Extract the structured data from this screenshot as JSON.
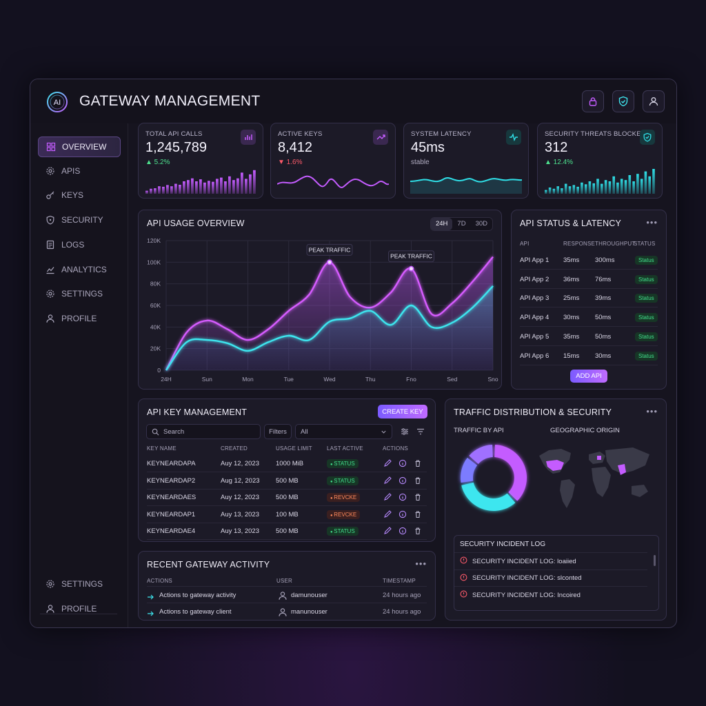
{
  "app": {
    "title": "GATEWAY MANAGEMENT",
    "logo_text": "AI"
  },
  "topbar": {
    "icons": [
      "lock-icon",
      "shield-check-icon",
      "user-icon"
    ]
  },
  "sidebar": {
    "items": [
      {
        "label": "OVERVIEW",
        "icon": "grid-icon",
        "active": true
      },
      {
        "label": "APIS",
        "icon": "gear-icon"
      },
      {
        "label": "KEYS",
        "icon": "key-icon"
      },
      {
        "label": "SECURITY",
        "icon": "shield-icon"
      },
      {
        "label": "LOGS",
        "icon": "document-icon"
      },
      {
        "label": "ANALYTICS",
        "icon": "chart-icon"
      },
      {
        "label": "SETTINGS",
        "icon": "gear-icon"
      },
      {
        "label": "PROFILE",
        "icon": "user-icon"
      }
    ],
    "bottom": [
      {
        "label": "SETTINGS",
        "icon": "gear-icon"
      },
      {
        "label": "PROFILE",
        "icon": "user-icon"
      }
    ]
  },
  "stats": [
    {
      "label": "TOTAL API CALLS",
      "value": "1,245,789",
      "delta": "▲ 5.2%",
      "delta_color": "#4ee38f",
      "accent": "#c45cff",
      "bars": [
        0.12,
        0.2,
        0.22,
        0.3,
        0.28,
        0.35,
        0.3,
        0.4,
        0.36,
        0.5,
        0.55,
        0.62,
        0.5,
        0.58,
        0.45,
        0.52,
        0.48,
        0.6,
        0.65,
        0.5,
        0.7,
        0.55,
        0.62,
        0.85,
        0.6,
        0.78,
        0.95
      ]
    },
    {
      "label": "ACTIVE KEYS",
      "value": "8,412",
      "delta": "▼ 1.6%",
      "delta_color": "#ff5b6b",
      "accent": "#c45cff"
    },
    {
      "label": "SYSTEM LATENCY",
      "value": "45ms",
      "delta": "stable",
      "delta_color": "#b3afc4",
      "accent": "#2fe0e8"
    },
    {
      "label": "SECURITY THREATS BLOCKED",
      "value": "312",
      "delta": "▲ 12.4%",
      "delta_color": "#4ee38f",
      "accent": "#2fe0e8",
      "bars": [
        0.15,
        0.25,
        0.2,
        0.3,
        0.22,
        0.4,
        0.3,
        0.35,
        0.28,
        0.45,
        0.38,
        0.5,
        0.42,
        0.6,
        0.4,
        0.55,
        0.5,
        0.7,
        0.45,
        0.6,
        0.55,
        0.75,
        0.5,
        0.8,
        0.6,
        0.9,
        0.7,
        1.0
      ]
    }
  ],
  "usage": {
    "title": "API USAGE OVERVIEW",
    "ranges": [
      "24H",
      "7D",
      "30D"
    ],
    "selected_range": "24H",
    "annotations": [
      "PEAK TRAFFIC",
      "PEAK TRAFFIC"
    ]
  },
  "chart_data": {
    "type": "area",
    "title": "API USAGE OVERVIEW",
    "categories": [
      "24H",
      "Sun",
      "Mon",
      "Tue",
      "Wed",
      "Thu",
      "Fno",
      "Sed",
      "Sno"
    ],
    "x": [
      0,
      0.5,
      1,
      1.5,
      2,
      2.5,
      3,
      3.5,
      4,
      4.5,
      5,
      5.5,
      6,
      6.5,
      7,
      7.5,
      8
    ],
    "series": [
      {
        "color": "#d65cff",
        "values": [
          0,
          35000,
          46000,
          38000,
          28000,
          38000,
          55000,
          70000,
          100000,
          68000,
          58000,
          72000,
          94000,
          52000,
          62000,
          82000,
          105000
        ]
      },
      {
        "color": "#3ee6ef",
        "values": [
          0,
          26000,
          28000,
          25000,
          18000,
          26000,
          32000,
          28000,
          45000,
          48000,
          55000,
          42000,
          60000,
          40000,
          44000,
          58000,
          78000
        ]
      }
    ],
    "ylim": [
      0,
      120000
    ],
    "yticks": [
      "0",
      "20K",
      "40K",
      "60K",
      "80K",
      "100K",
      "120K"
    ],
    "grid": true
  },
  "status": {
    "title": "API STATUS & LATENCY",
    "headers": [
      "API",
      "RESPONSE",
      "THROUGHPUT",
      "STATUS"
    ],
    "rows": [
      {
        "api": "API App 1",
        "response": "35ms",
        "throughput": "300ms",
        "status": "Status"
      },
      {
        "api": "API App 2",
        "response": "36ms",
        "throughput": "76ms",
        "status": "Status"
      },
      {
        "api": "API App 3",
        "response": "25ms",
        "throughput": "39ms",
        "status": "Status"
      },
      {
        "api": "API App 4",
        "response": "30ms",
        "throughput": "50ms",
        "status": "Status"
      },
      {
        "api": "API App 5",
        "response": "35ms",
        "throughput": "50ms",
        "status": "Status"
      },
      {
        "api": "API App 6",
        "response": "15ms",
        "throughput": "30ms",
        "status": "Status"
      }
    ],
    "add_label": "ADD API"
  },
  "keys": {
    "title": "API KEY MANAGEMENT",
    "create_label": "CREATE KEY",
    "search_placeholder": "Search",
    "filters_label": "Filters",
    "select_value": "All",
    "headers": [
      "KEY NAME",
      "CREATED",
      "USAGE LIMIT",
      "LAST ACTIVE",
      "ACTIONS"
    ],
    "rows": [
      {
        "name": "KEYNEARDAPA",
        "created": "Auy 12, 2023",
        "limit": "1000 MiB",
        "state": "STATUS",
        "ok": true
      },
      {
        "name": "KEYNEARDAP2",
        "created": "Aug 12, 2023",
        "limit": "500 MB",
        "state": "STATUS",
        "ok": true
      },
      {
        "name": "KEYNEARDAES",
        "created": "Auy 12, 2023",
        "limit": "500 MB",
        "state": "REVCKE",
        "ok": false
      },
      {
        "name": "KEYNEARDAP1",
        "created": "Auy 13, 2023",
        "limit": "100 MB",
        "state": "REVCKE",
        "ok": false
      },
      {
        "name": "KEYNEARDAE4",
        "created": "Auy 13, 2023",
        "limit": "500 MB",
        "state": "STATUS",
        "ok": true
      }
    ]
  },
  "activity": {
    "title": "RECENT GATEWAY ACTIVITY",
    "headers": [
      "ACTIONS",
      "USER",
      "TIMESTAMP"
    ],
    "rows": [
      {
        "action": "Actions to gateway activity",
        "user": "damunouser",
        "time": "24 hours ago"
      },
      {
        "action": "Actions to gateway client",
        "user": "manunouser",
        "time": "24 hours ago"
      }
    ]
  },
  "traffic": {
    "title": "TRAFFIC DISTRIBUTION & SECURITY",
    "by_api_label": "TRAFFIC BY API",
    "geo_label": "GEOGRAPHIC ORIGIN",
    "donut": [
      {
        "share": 0.38,
        "color": "#c45cff"
      },
      {
        "share": 0.34,
        "color": "#3ee6ef"
      },
      {
        "share": 0.14,
        "color": "#7b7bff"
      },
      {
        "share": 0.14,
        "color": "#a070ff"
      }
    ],
    "log_title": "SECURITY INCIDENT LOG",
    "logs": [
      "SECURITY INCIDENT LOG: loaiied",
      "SECURITY INCIDENT LOG: slconted",
      "SECURITY INCIDENT LOG: Incoired"
    ]
  }
}
